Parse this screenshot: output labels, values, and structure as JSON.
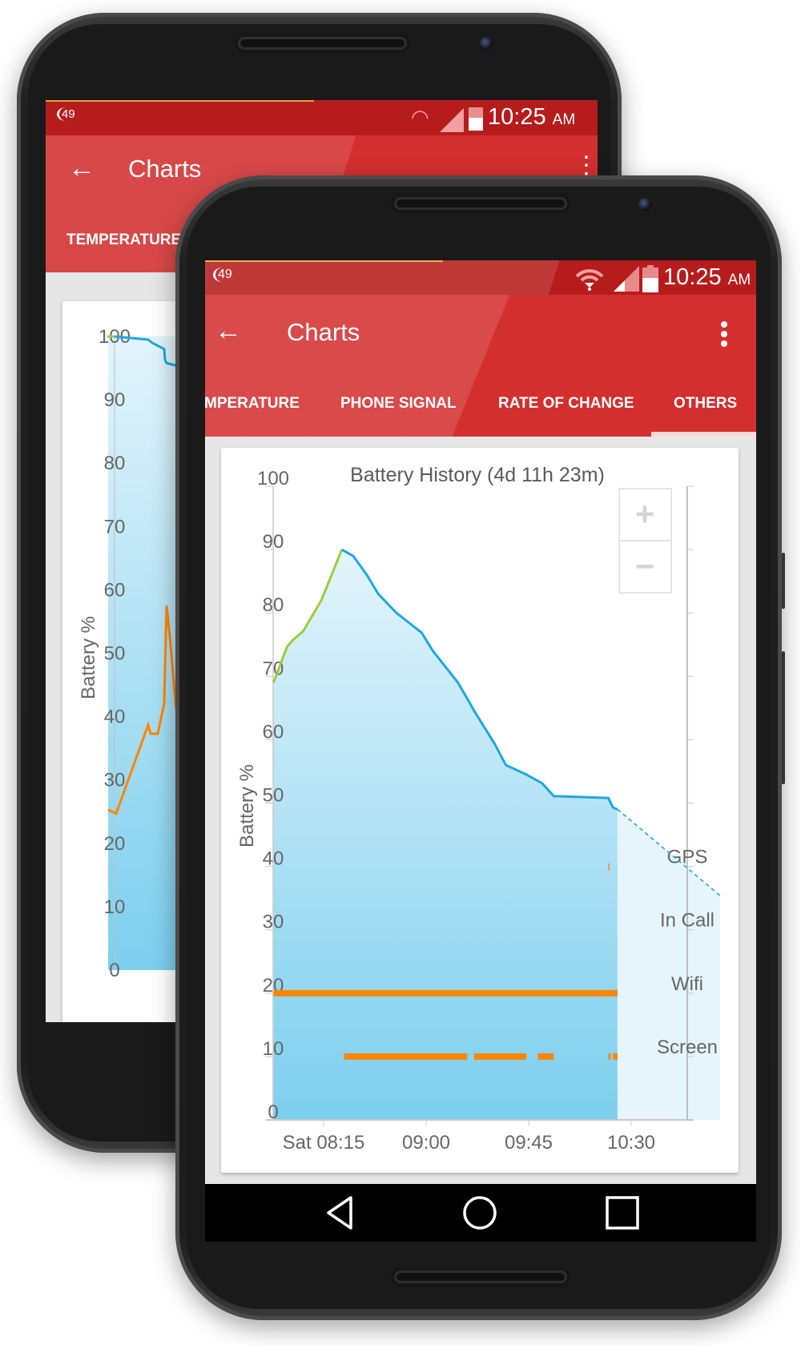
{
  "status_bar": {
    "notification_badge": "49",
    "time": "10:25",
    "ampm": "AM"
  },
  "back_phone": {
    "title": "Charts",
    "tabs": [
      {
        "label": "TEMPERATURE"
      }
    ],
    "y_ticks": [
      "0",
      "10",
      "20",
      "30",
      "40",
      "50",
      "60",
      "70",
      "80",
      "90",
      "100"
    ],
    "ylabel": "Battery %"
  },
  "toolbar": {
    "title": "Charts",
    "back_icon": "arrow-left-icon",
    "menu_icon": "more-vertical-icon"
  },
  "tabs": [
    {
      "label": "MPERATURE",
      "active": false
    },
    {
      "label": "PHONE SIGNAL",
      "active": false
    },
    {
      "label": "RATE OF CHANGE",
      "active": false
    },
    {
      "label": "OTHERS",
      "active": true
    }
  ],
  "zoom_controls": {
    "zoom_in": "+",
    "zoom_out": "−"
  },
  "nav": {
    "back": "back-triangle-icon",
    "home": "home-circle-icon",
    "recents": "recents-square-icon"
  },
  "colors": {
    "red": "#d32f2f",
    "status_red": "#b71c1c",
    "battery_line": "#1ea7e1",
    "charging_line": "#9ccc3c",
    "state_bar": "#ff8500",
    "fill_top": "#e3f4fb",
    "fill_bottom": "#7ccfee"
  },
  "chart_data": [
    {
      "type": "line",
      "title": "Battery History (4d 11h 23m)",
      "ylabel": "Battery %",
      "xlabel": "",
      "ylim": [
        0,
        100
      ],
      "xlim": [
        "07:52",
        "10:55"
      ],
      "y_ticks": [
        "0",
        "10",
        "20",
        "30",
        "40",
        "50",
        "60",
        "70",
        "80",
        "90",
        "100"
      ],
      "x_ticks": [
        {
          "t": "08:15",
          "label": "Sat 08:15"
        },
        {
          "t": "09:00",
          "label": "09:00"
        },
        {
          "t": "09:45",
          "label": "09:45"
        },
        {
          "t": "10:30",
          "label": "10:30"
        }
      ],
      "series": [
        {
          "kind": "charging",
          "color": "#9ccc3c",
          "points": [
            [
              "07:53",
              69
            ],
            [
              "07:59",
              74.7
            ],
            [
              "08:02",
              75.9
            ],
            [
              "08:06",
              77.1
            ],
            [
              "08:14",
              82
            ],
            [
              "08:23",
              90
            ]
          ]
        },
        {
          "kind": "discharging",
          "color": "#1ea7e1",
          "points": [
            [
              "08:23",
              90
            ],
            [
              "08:28",
              89
            ],
            [
              "08:34",
              86
            ],
            [
              "08:39",
              83
            ],
            [
              "08:47",
              80
            ],
            [
              "08:58",
              76.9
            ],
            [
              "09:03",
              74
            ],
            [
              "09:14",
              69
            ],
            [
              "09:19",
              65.9
            ],
            [
              "09:21",
              64.6
            ],
            [
              "09:30",
              59.4
            ],
            [
              "09:35",
              56
            ],
            [
              "09:44",
              54.5
            ],
            [
              "09:51",
              53.1
            ],
            [
              "09:56",
              51.1
            ],
            [
              "10:20",
              50.8
            ],
            [
              "10:22",
              49.3
            ],
            [
              "10:24",
              49
            ]
          ]
        },
        {
          "kind": "projection",
          "color": "#1ea7e1",
          "dashed": true,
          "points": [
            [
              "10:24",
              49
            ],
            [
              "11:09",
              35.4
            ]
          ]
        }
      ],
      "states": [
        {
          "label": "GPS",
          "level": 40,
          "segments": [
            [
              "10:20",
              "10:20"
            ]
          ]
        },
        {
          "label": "In Call",
          "level": 30,
          "segments": []
        },
        {
          "label": "Wifi",
          "level": 20,
          "segments": [
            [
              "07:53",
              "10:24"
            ]
          ]
        },
        {
          "label": "Screen",
          "level": 10,
          "segments": [
            [
              "08:24",
              "09:18"
            ],
            [
              "09:21",
              "09:44"
            ],
            [
              "09:49",
              "09:56"
            ],
            [
              "10:20",
              "10:21"
            ],
            [
              "10:22",
              "10:24"
            ]
          ]
        }
      ],
      "grid": false,
      "legend": "none"
    },
    {
      "type": "line",
      "ylabel": "Battery %",
      "ylim": [
        0,
        100
      ],
      "series": [
        {
          "color": "#1ea7e1",
          "values": [
            100,
            99.5,
            99,
            98,
            96.3,
            95.8,
            95.4
          ]
        },
        {
          "color": "#ff8500",
          "values": [
            25.3,
            24.7,
            38.7,
            37.3,
            37.3,
            42.1,
            57.5,
            52.7,
            41.1
          ]
        }
      ]
    }
  ]
}
